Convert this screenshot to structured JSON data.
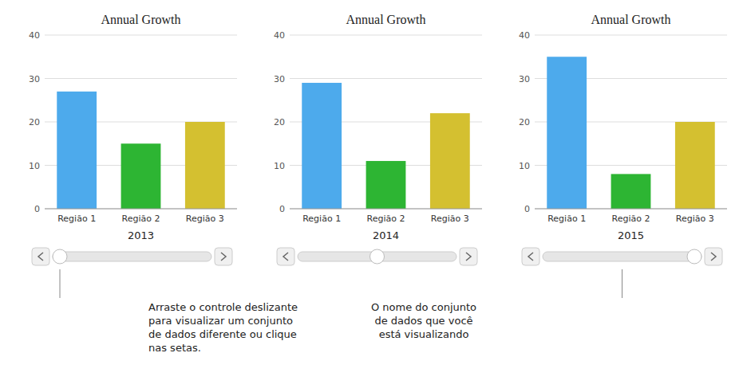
{
  "chart_data": [
    {
      "type": "bar",
      "title": "Annual Growth",
      "subtitle": "2013",
      "categories": [
        "Região 1",
        "Região 2",
        "Região 3"
      ],
      "values": [
        27,
        15,
        20
      ],
      "colors": [
        "#4DAAEC",
        "#2DB533",
        "#D4C030"
      ],
      "ylim": [
        0,
        40
      ],
      "yticks": [
        0,
        10,
        20,
        30,
        40
      ],
      "grid": true,
      "annotations": [
        "Arraste o controle deslizante\npara visualizar um conjunto\nde dados diferente ou clique\nnas setas."
      ]
    },
    {
      "type": "bar",
      "title": "Annual Growth",
      "subtitle": "2014",
      "categories": [
        "Região 1",
        "Região 2",
        "Região 3"
      ],
      "values": [
        29,
        11,
        22
      ],
      "colors": [
        "#4DAAEC",
        "#2DB533",
        "#D4C030"
      ],
      "ylim": [
        0,
        40
      ],
      "yticks": [
        0,
        10,
        20,
        30,
        40
      ],
      "grid": true
    },
    {
      "type": "bar",
      "title": "Annual Growth",
      "subtitle": "2015",
      "categories": [
        "Região 1",
        "Região 2",
        "Região 3"
      ],
      "values": [
        35,
        8,
        20
      ],
      "colors": [
        "#4DAAEC",
        "#2DB533",
        "#D4C030"
      ],
      "ylim": [
        0,
        40
      ],
      "yticks": [
        0,
        10,
        20,
        30,
        40
      ],
      "grid": true,
      "annotations": [
        "O nome do conjunto\nde dados que você\nestá visualizando"
      ]
    }
  ]
}
